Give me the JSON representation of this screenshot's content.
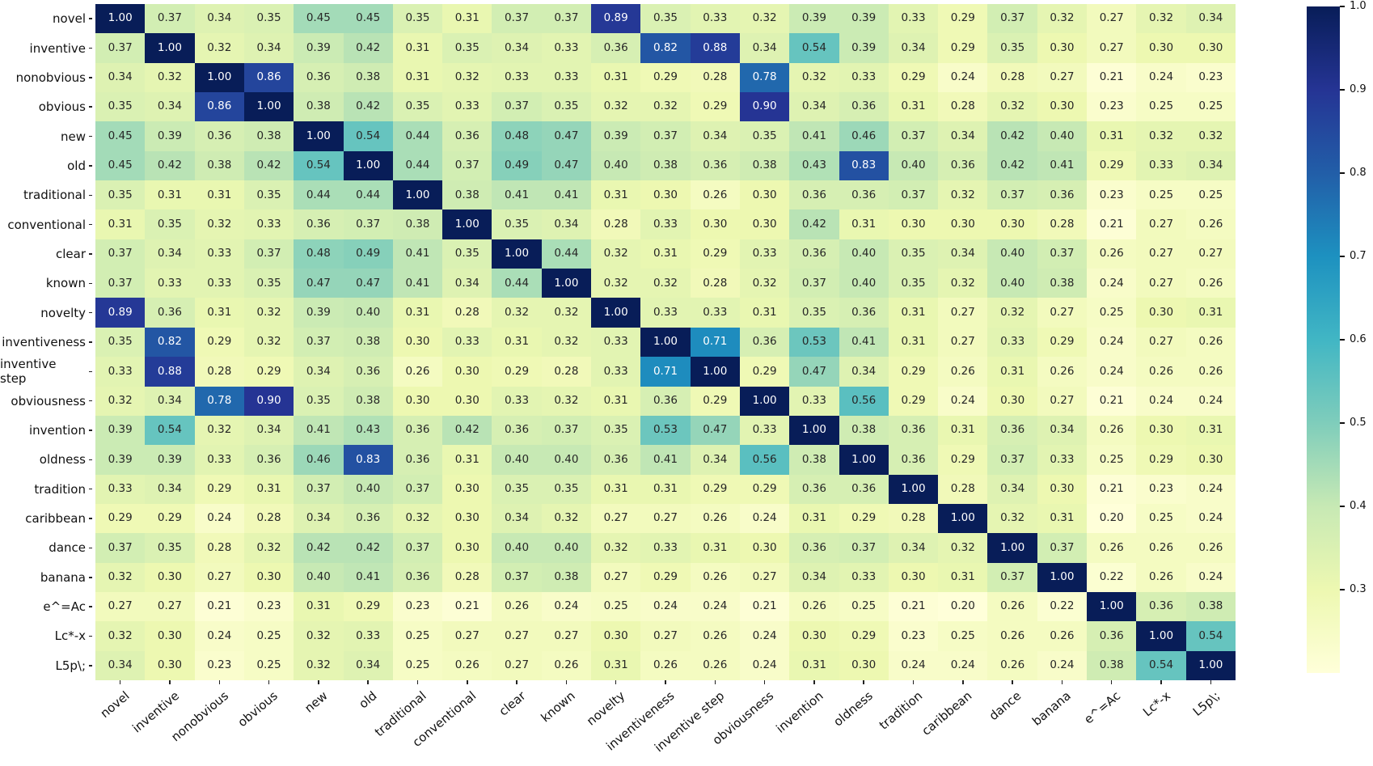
{
  "chart_data": {
    "type": "heatmap",
    "title": "",
    "labels": [
      "novel",
      "inventive",
      "nonobvious",
      "obvious",
      "new",
      "old",
      "traditional",
      "conventional",
      "clear",
      "known",
      "novelty",
      "inventiveness",
      "inventive step",
      "obviousness",
      "invention",
      "oldness",
      "tradition",
      "caribbean",
      "dance",
      "banana",
      "e^=Ac",
      "Lc*-x",
      "L5p\\;"
    ],
    "matrix": [
      [
        1.0,
        0.37,
        0.34,
        0.35,
        0.45,
        0.45,
        0.35,
        0.31,
        0.37,
        0.37,
        0.89,
        0.35,
        0.33,
        0.32,
        0.39,
        0.39,
        0.33,
        0.29,
        0.37,
        0.32,
        0.27,
        0.32,
        0.34
      ],
      [
        0.37,
        1.0,
        0.32,
        0.34,
        0.39,
        0.42,
        0.31,
        0.35,
        0.34,
        0.33,
        0.36,
        0.82,
        0.88,
        0.34,
        0.54,
        0.39,
        0.34,
        0.29,
        0.35,
        0.3,
        0.27,
        0.3,
        0.3
      ],
      [
        0.34,
        0.32,
        1.0,
        0.86,
        0.36,
        0.38,
        0.31,
        0.32,
        0.33,
        0.33,
        0.31,
        0.29,
        0.28,
        0.78,
        0.32,
        0.33,
        0.29,
        0.24,
        0.28,
        0.27,
        0.21,
        0.24,
        0.23
      ],
      [
        0.35,
        0.34,
        0.86,
        1.0,
        0.38,
        0.42,
        0.35,
        0.33,
        0.37,
        0.35,
        0.32,
        0.32,
        0.29,
        0.9,
        0.34,
        0.36,
        0.31,
        0.28,
        0.32,
        0.3,
        0.23,
        0.25,
        0.25
      ],
      [
        0.45,
        0.39,
        0.36,
        0.38,
        1.0,
        0.54,
        0.44,
        0.36,
        0.48,
        0.47,
        0.39,
        0.37,
        0.34,
        0.35,
        0.41,
        0.46,
        0.37,
        0.34,
        0.42,
        0.4,
        0.31,
        0.32,
        0.32
      ],
      [
        0.45,
        0.42,
        0.38,
        0.42,
        0.54,
        1.0,
        0.44,
        0.37,
        0.49,
        0.47,
        0.4,
        0.38,
        0.36,
        0.38,
        0.43,
        0.83,
        0.4,
        0.36,
        0.42,
        0.41,
        0.29,
        0.33,
        0.34
      ],
      [
        0.35,
        0.31,
        0.31,
        0.35,
        0.44,
        0.44,
        1.0,
        0.38,
        0.41,
        0.41,
        0.31,
        0.3,
        0.26,
        0.3,
        0.36,
        0.36,
        0.37,
        0.32,
        0.37,
        0.36,
        0.23,
        0.25,
        0.25
      ],
      [
        0.31,
        0.35,
        0.32,
        0.33,
        0.36,
        0.37,
        0.38,
        1.0,
        0.35,
        0.34,
        0.28,
        0.33,
        0.3,
        0.3,
        0.42,
        0.31,
        0.3,
        0.3,
        0.3,
        0.28,
        0.21,
        0.27,
        0.26
      ],
      [
        0.37,
        0.34,
        0.33,
        0.37,
        0.48,
        0.49,
        0.41,
        0.35,
        1.0,
        0.44,
        0.32,
        0.31,
        0.29,
        0.33,
        0.36,
        0.4,
        0.35,
        0.34,
        0.4,
        0.37,
        0.26,
        0.27,
        0.27
      ],
      [
        0.37,
        0.33,
        0.33,
        0.35,
        0.47,
        0.47,
        0.41,
        0.34,
        0.44,
        1.0,
        0.32,
        0.32,
        0.28,
        0.32,
        0.37,
        0.4,
        0.35,
        0.32,
        0.4,
        0.38,
        0.24,
        0.27,
        0.26
      ],
      [
        0.89,
        0.36,
        0.31,
        0.32,
        0.39,
        0.4,
        0.31,
        0.28,
        0.32,
        0.32,
        1.0,
        0.33,
        0.33,
        0.31,
        0.35,
        0.36,
        0.31,
        0.27,
        0.32,
        0.27,
        0.25,
        0.3,
        0.31
      ],
      [
        0.35,
        0.82,
        0.29,
        0.32,
        0.37,
        0.38,
        0.3,
        0.33,
        0.31,
        0.32,
        0.33,
        1.0,
        0.71,
        0.36,
        0.53,
        0.41,
        0.31,
        0.27,
        0.33,
        0.29,
        0.24,
        0.27,
        0.26
      ],
      [
        0.33,
        0.88,
        0.28,
        0.29,
        0.34,
        0.36,
        0.26,
        0.3,
        0.29,
        0.28,
        0.33,
        0.71,
        1.0,
        0.29,
        0.47,
        0.34,
        0.29,
        0.26,
        0.31,
        0.26,
        0.24,
        0.26,
        0.26
      ],
      [
        0.32,
        0.34,
        0.78,
        0.9,
        0.35,
        0.38,
        0.3,
        0.3,
        0.33,
        0.32,
        0.31,
        0.36,
        0.29,
        1.0,
        0.33,
        0.56,
        0.29,
        0.24,
        0.3,
        0.27,
        0.21,
        0.24,
        0.24
      ],
      [
        0.39,
        0.54,
        0.32,
        0.34,
        0.41,
        0.43,
        0.36,
        0.42,
        0.36,
        0.37,
        0.35,
        0.53,
        0.47,
        0.33,
        1.0,
        0.38,
        0.36,
        0.31,
        0.36,
        0.34,
        0.26,
        0.3,
        0.31
      ],
      [
        0.39,
        0.39,
        0.33,
        0.36,
        0.46,
        0.83,
        0.36,
        0.31,
        0.4,
        0.4,
        0.36,
        0.41,
        0.34,
        0.56,
        0.38,
        1.0,
        0.36,
        0.29,
        0.37,
        0.33,
        0.25,
        0.29,
        0.3
      ],
      [
        0.33,
        0.34,
        0.29,
        0.31,
        0.37,
        0.4,
        0.37,
        0.3,
        0.35,
        0.35,
        0.31,
        0.31,
        0.29,
        0.29,
        0.36,
        0.36,
        1.0,
        0.28,
        0.34,
        0.3,
        0.21,
        0.23,
        0.24
      ],
      [
        0.29,
        0.29,
        0.24,
        0.28,
        0.34,
        0.36,
        0.32,
        0.3,
        0.34,
        0.32,
        0.27,
        0.27,
        0.26,
        0.24,
        0.31,
        0.29,
        0.28,
        1.0,
        0.32,
        0.31,
        0.2,
        0.25,
        0.24
      ],
      [
        0.37,
        0.35,
        0.28,
        0.32,
        0.42,
        0.42,
        0.37,
        0.3,
        0.4,
        0.4,
        0.32,
        0.33,
        0.31,
        0.3,
        0.36,
        0.37,
        0.34,
        0.32,
        1.0,
        0.37,
        0.26,
        0.26,
        0.26
      ],
      [
        0.32,
        0.3,
        0.27,
        0.3,
        0.4,
        0.41,
        0.36,
        0.28,
        0.37,
        0.38,
        0.27,
        0.29,
        0.26,
        0.27,
        0.34,
        0.33,
        0.3,
        0.31,
        0.37,
        1.0,
        0.22,
        0.26,
        0.24
      ],
      [
        0.27,
        0.27,
        0.21,
        0.23,
        0.31,
        0.29,
        0.23,
        0.21,
        0.26,
        0.24,
        0.25,
        0.24,
        0.24,
        0.21,
        0.26,
        0.25,
        0.21,
        0.2,
        0.26,
        0.22,
        1.0,
        0.36,
        0.38
      ],
      [
        0.32,
        0.3,
        0.24,
        0.25,
        0.32,
        0.33,
        0.25,
        0.27,
        0.27,
        0.27,
        0.3,
        0.27,
        0.26,
        0.24,
        0.3,
        0.29,
        0.23,
        0.25,
        0.26,
        0.26,
        0.36,
        1.0,
        0.54
      ],
      [
        0.34,
        0.3,
        0.23,
        0.25,
        0.32,
        0.34,
        0.25,
        0.26,
        0.27,
        0.26,
        0.31,
        0.26,
        0.26,
        0.24,
        0.31,
        0.3,
        0.24,
        0.24,
        0.26,
        0.24,
        0.38,
        0.54,
        1.0
      ]
    ],
    "value_format": "0.00",
    "colormap": "YlGnBu",
    "colormap_stops": [
      "#ffffd9",
      "#edf8b1",
      "#c7e9b4",
      "#7fcdbb",
      "#41b6c4",
      "#1d91c0",
      "#225ea8",
      "#253494",
      "#081d58"
    ],
    "vmin": 0.2,
    "vmax": 1.0,
    "colorbar_ticks": [
      1.0,
      0.9,
      0.8,
      0.7,
      0.6,
      0.5,
      0.4,
      0.3
    ],
    "legend_position": "right-colorbar",
    "grid": false,
    "annotation_text_dark": "#262626",
    "annotation_text_light": "#ffffff",
    "tick_label_color": "#111111",
    "x_label_rotation_deg": 40
  }
}
